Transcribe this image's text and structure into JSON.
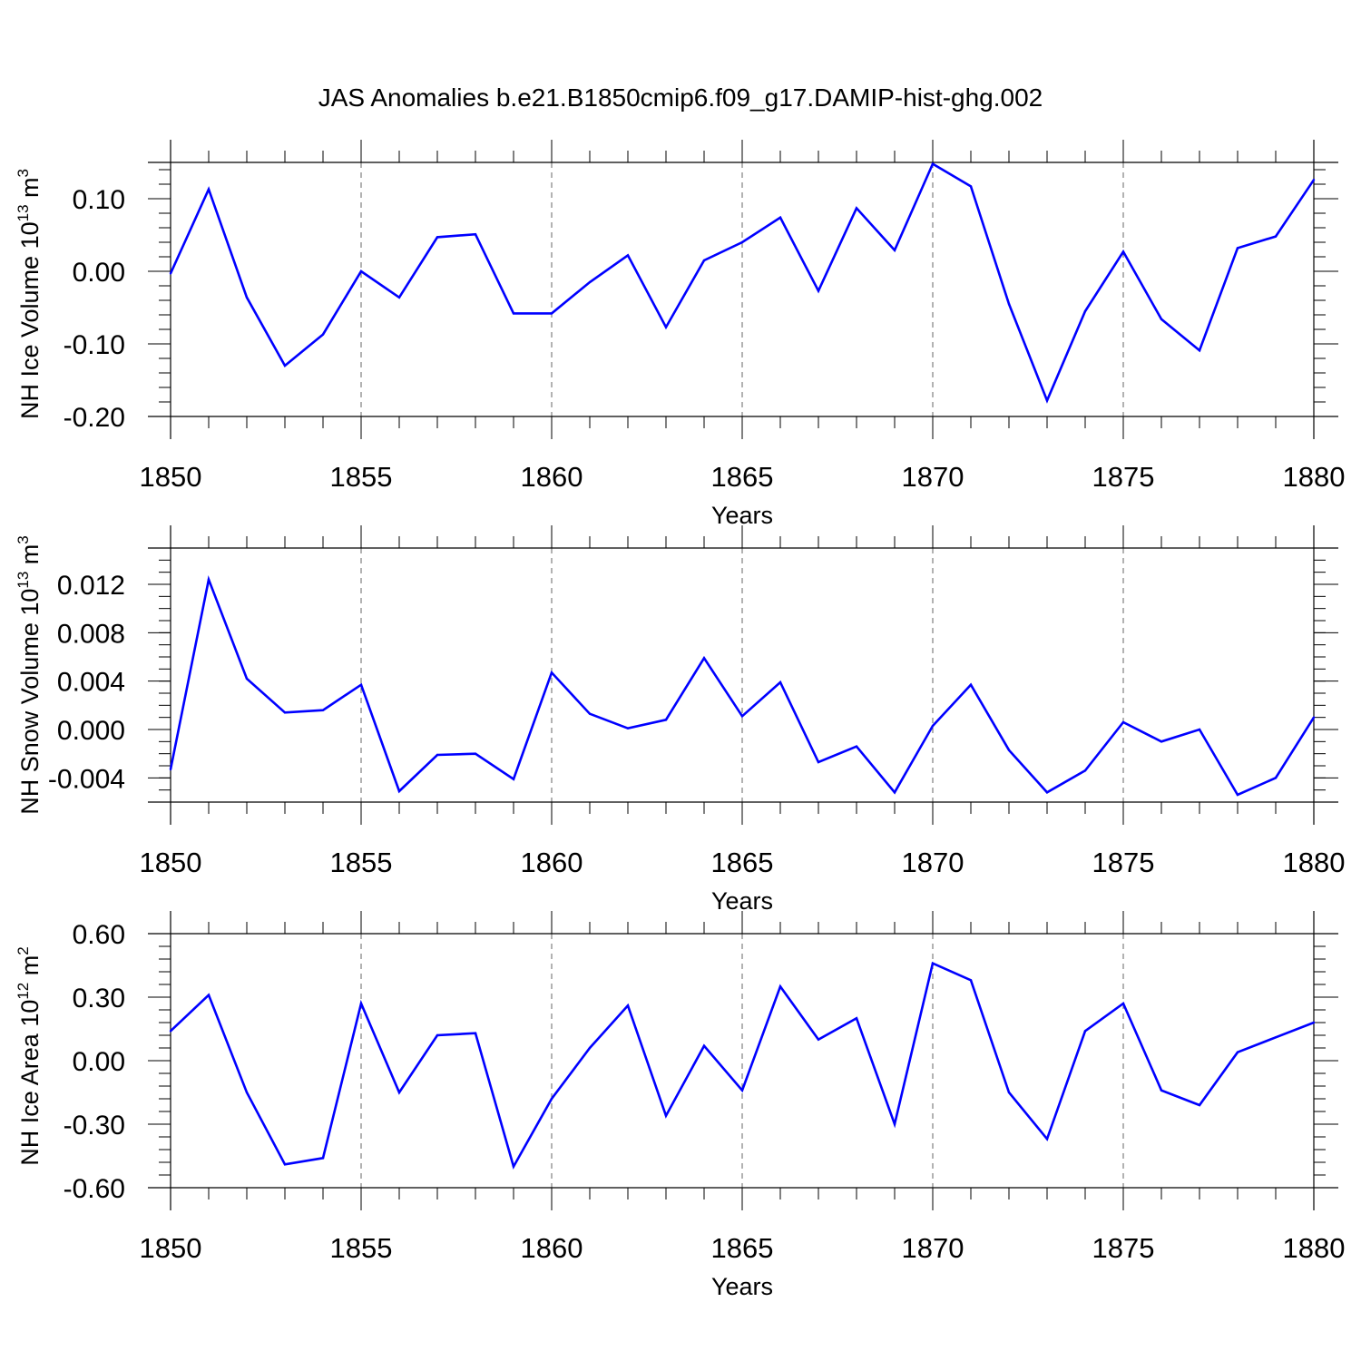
{
  "title": "JAS Anomalies b.e21.B1850cmip6.f09_g17.DAMIP-hist-ghg.002",
  "chart_data": [
    {
      "type": "line",
      "xlabel": "Years",
      "ylabel": "NH Ice Volume 10",
      "ylabel_sup": "13",
      "ylabel_unit": " m",
      "ylabel_unit_sup": "3",
      "xlim": [
        1850,
        1880
      ],
      "ylim": [
        -0.2,
        0.15
      ],
      "x_ticks": [
        "1850",
        "1855",
        "1860",
        "1865",
        "1870",
        "1875",
        "1880"
      ],
      "y_ticks": [
        {
          "value": -0.2,
          "label": "-0.20"
        },
        {
          "value": -0.1,
          "label": "-0.10"
        },
        {
          "value": 0.0,
          "label": "0.00"
        },
        {
          "value": 0.1,
          "label": "0.10"
        }
      ],
      "y_minor_step": 0.02,
      "grid": "dashed vertical at major x ticks",
      "line_color": "#0000ff",
      "x": [
        1850,
        1851,
        1852,
        1853,
        1854,
        1855,
        1856,
        1857,
        1858,
        1859,
        1860,
        1861,
        1862,
        1863,
        1864,
        1865,
        1866,
        1867,
        1868,
        1869,
        1870,
        1871,
        1872,
        1873,
        1874,
        1875,
        1876,
        1877,
        1878,
        1879,
        1880
      ],
      "values": [
        -0.003,
        0.113,
        -0.036,
        -0.13,
        -0.087,
        0.0,
        -0.036,
        0.047,
        0.051,
        -0.058,
        -0.058,
        -0.015,
        0.022,
        -0.077,
        0.015,
        0.04,
        0.074,
        -0.027,
        0.087,
        0.029,
        0.148,
        0.117,
        -0.045,
        -0.178,
        -0.055,
        0.027,
        -0.066,
        -0.109,
        0.032,
        0.048,
        0.126
      ]
    },
    {
      "type": "line",
      "xlabel": "Years",
      "ylabel": "NH Snow Volume 10",
      "ylabel_sup": "13",
      "ylabel_unit": " m",
      "ylabel_unit_sup": "3",
      "xlim": [
        1850,
        1880
      ],
      "ylim": [
        -0.006,
        0.015
      ],
      "x_ticks": [
        "1850",
        "1855",
        "1860",
        "1865",
        "1870",
        "1875",
        "1880"
      ],
      "y_ticks": [
        {
          "value": -0.004,
          "label": "-0.004"
        },
        {
          "value": 0.0,
          "label": "0.000"
        },
        {
          "value": 0.004,
          "label": "0.004"
        },
        {
          "value": 0.008,
          "label": "0.008"
        },
        {
          "value": 0.012,
          "label": "0.012"
        }
      ],
      "y_minor_step": 0.001,
      "grid": "dashed vertical at major x ticks",
      "line_color": "#0000ff",
      "x": [
        1850,
        1851,
        1852,
        1853,
        1854,
        1855,
        1856,
        1857,
        1858,
        1859,
        1860,
        1861,
        1862,
        1863,
        1864,
        1865,
        1866,
        1867,
        1868,
        1869,
        1870,
        1871,
        1872,
        1873,
        1874,
        1875,
        1876,
        1877,
        1878,
        1879,
        1880
      ],
      "values": [
        -0.0033,
        0.0124,
        0.0042,
        0.0014,
        0.0016,
        0.0037,
        -0.0051,
        -0.0021,
        -0.002,
        -0.0041,
        0.0047,
        0.0013,
        0.0001,
        0.0008,
        0.0059,
        0.0011,
        0.0039,
        -0.0027,
        -0.0014,
        -0.0052,
        0.0003,
        0.0037,
        -0.0017,
        -0.0052,
        -0.0034,
        0.0006,
        -0.001,
        0.0,
        -0.0054,
        -0.004,
        0.001
      ]
    },
    {
      "type": "line",
      "xlabel": "Years",
      "ylabel": "NH Ice Area 10",
      "ylabel_sup": "12",
      "ylabel_unit": " m",
      "ylabel_unit_sup": "2",
      "xlim": [
        1850,
        1880
      ],
      "ylim": [
        -0.6,
        0.6
      ],
      "x_ticks": [
        "1850",
        "1855",
        "1860",
        "1865",
        "1870",
        "1875",
        "1880"
      ],
      "y_ticks": [
        {
          "value": -0.6,
          "label": "-0.60"
        },
        {
          "value": -0.3,
          "label": "-0.30"
        },
        {
          "value": 0.0,
          "label": "0.00"
        },
        {
          "value": 0.3,
          "label": "0.30"
        },
        {
          "value": 0.6,
          "label": "0.60"
        }
      ],
      "y_minor_step": 0.06,
      "grid": "dashed vertical at major x ticks",
      "line_color": "#0000ff",
      "x": [
        1850,
        1851,
        1852,
        1853,
        1854,
        1855,
        1856,
        1857,
        1858,
        1859,
        1860,
        1861,
        1862,
        1863,
        1864,
        1865,
        1866,
        1867,
        1868,
        1869,
        1870,
        1871,
        1872,
        1873,
        1874,
        1875,
        1876,
        1877,
        1878,
        1879,
        1880
      ],
      "values": [
        0.14,
        0.31,
        -0.15,
        -0.49,
        -0.46,
        0.27,
        -0.15,
        0.12,
        0.13,
        -0.5,
        -0.18,
        0.06,
        0.26,
        -0.26,
        0.07,
        -0.14,
        0.35,
        0.1,
        0.2,
        -0.3,
        0.46,
        0.38,
        -0.15,
        -0.37,
        0.14,
        0.27,
        -0.14,
        -0.21,
        0.04,
        0.11,
        0.18
      ]
    }
  ]
}
